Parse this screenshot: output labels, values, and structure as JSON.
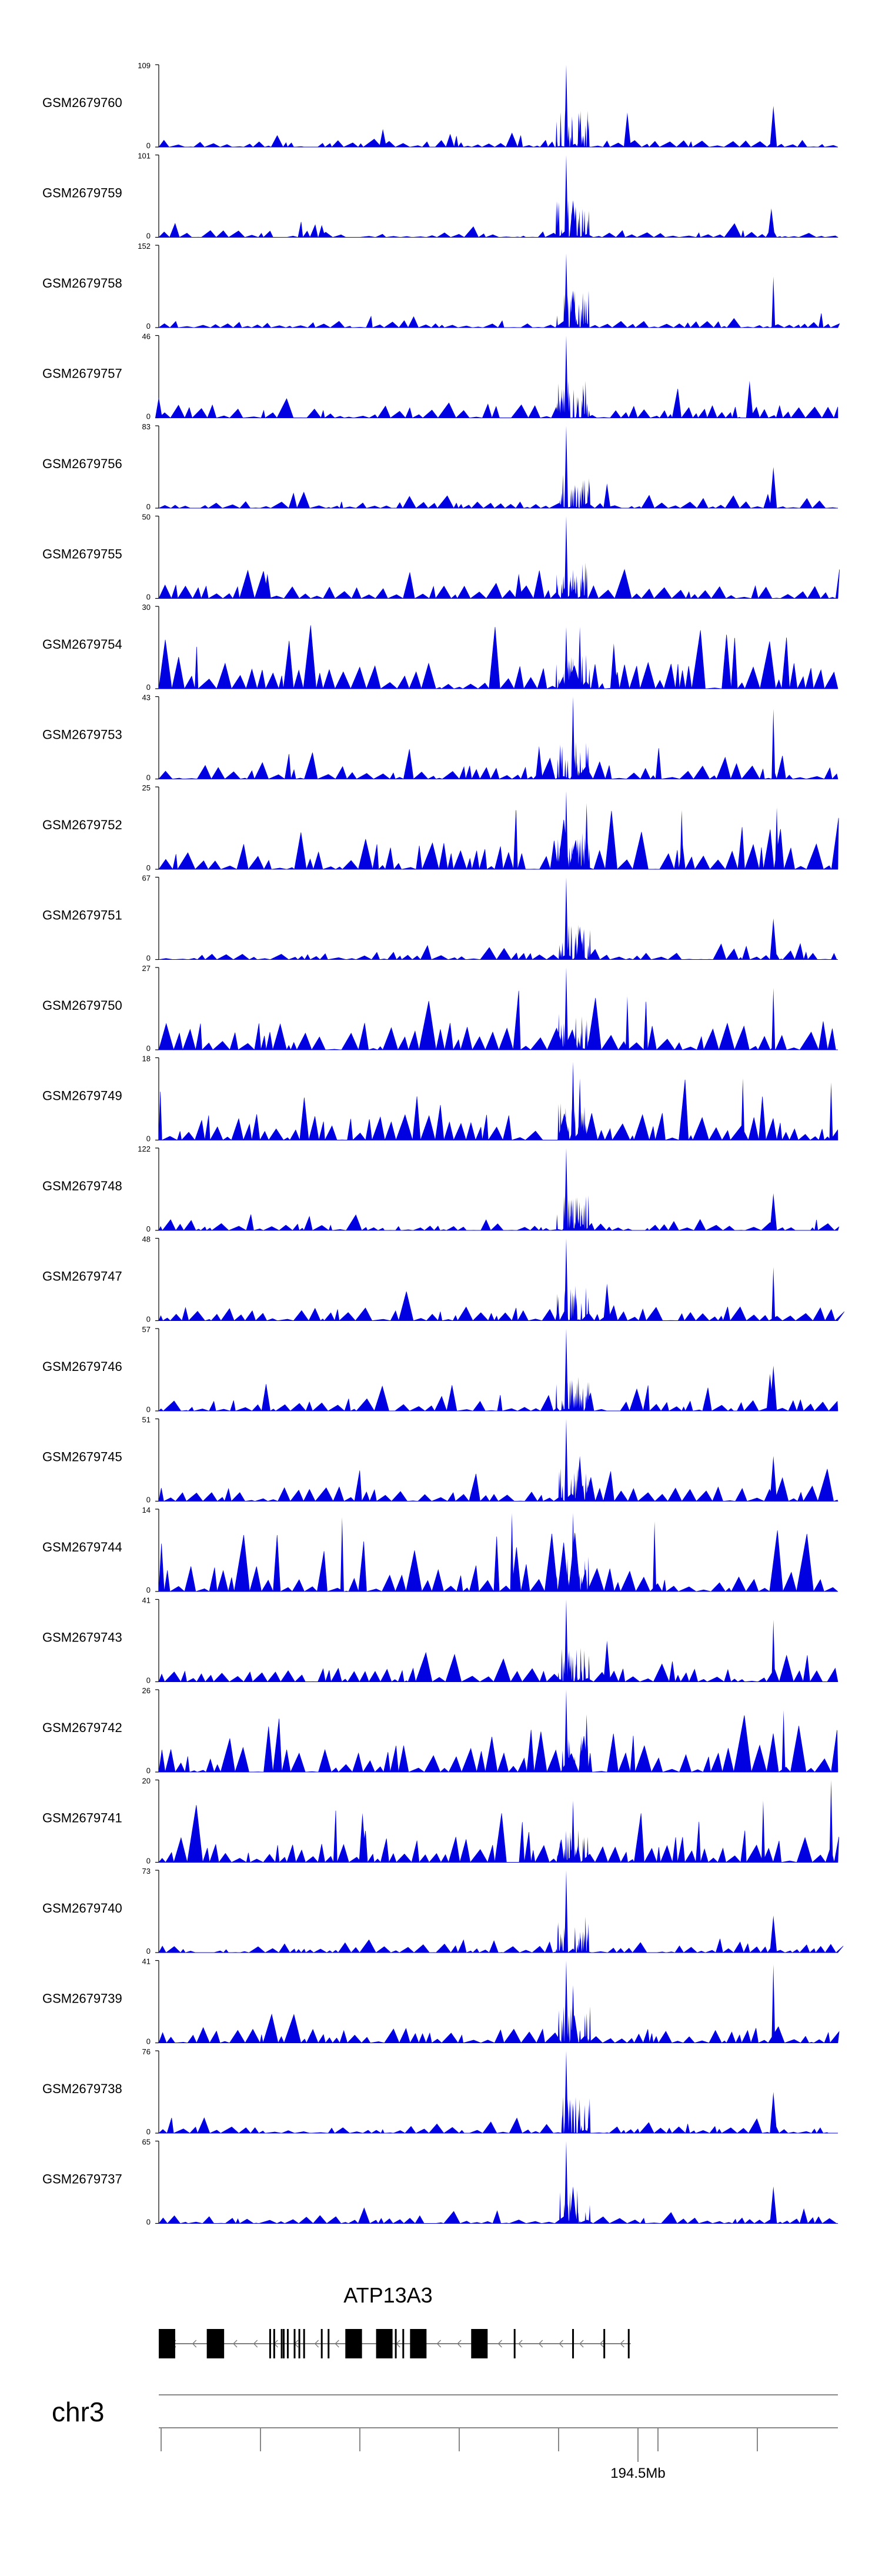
{
  "chart_data": {
    "type": "area",
    "title": "",
    "chromosome": "chr3",
    "series_color": "#0000e0",
    "axis": {
      "tick_label": "194.5Mb",
      "tick_value_mb": 194.5
    },
    "tracks": [
      {
        "name": "GSM2679760",
        "ymin": 0,
        "ymax": 109,
        "peaks": [
          {
            "pos": 0.6,
            "h": 1.0
          },
          {
            "pos": 0.905,
            "h": 0.5
          },
          {
            "pos": 0.69,
            "h": 0.42
          },
          {
            "pos": 0.33,
            "h": 0.22
          }
        ]
      },
      {
        "name": "GSM2679759",
        "ymin": 0,
        "ymax": 101,
        "peaks": [
          {
            "pos": 0.6,
            "h": 1.0
          },
          {
            "pos": 0.902,
            "h": 0.35
          },
          {
            "pos": 0.61,
            "h": 0.45
          },
          {
            "pos": 0.24,
            "h": 0.15
          }
        ]
      },
      {
        "name": "GSM2679758",
        "ymin": 0,
        "ymax": 152,
        "peaks": [
          {
            "pos": 0.6,
            "h": 0.9
          },
          {
            "pos": 0.905,
            "h": 0.62
          },
          {
            "pos": 0.61,
            "h": 0.45
          }
        ]
      },
      {
        "name": "GSM2679757",
        "ymin": 0,
        "ymax": 46,
        "peaks": [
          {
            "pos": 0.6,
            "h": 1.0
          },
          {
            "pos": 0.87,
            "h": 0.45
          },
          {
            "pos": 0.0,
            "h": 0.25
          }
        ]
      },
      {
        "name": "GSM2679756",
        "ymin": 0,
        "ymax": 83,
        "peaks": [
          {
            "pos": 0.6,
            "h": 1.0
          },
          {
            "pos": 0.905,
            "h": 0.5
          },
          {
            "pos": 0.66,
            "h": 0.3
          }
        ]
      },
      {
        "name": "GSM2679755",
        "ymin": 0,
        "ymax": 50,
        "peaks": [
          {
            "pos": 0.6,
            "h": 1.0
          },
          {
            "pos": 0.16,
            "h": 0.3
          },
          {
            "pos": 0.53,
            "h": 0.3
          }
        ]
      },
      {
        "name": "GSM2679754",
        "ymin": 0,
        "ymax": 30,
        "peaks": [
          {
            "pos": 0.6,
            "h": 0.75
          },
          {
            "pos": 0.62,
            "h": 0.75
          },
          {
            "pos": 0.67,
            "h": 0.55
          }
        ]
      },
      {
        "name": "GSM2679753",
        "ymin": 0,
        "ymax": 43,
        "peaks": [
          {
            "pos": 0.61,
            "h": 1.0
          },
          {
            "pos": 0.905,
            "h": 0.85
          },
          {
            "pos": 0.56,
            "h": 0.4
          }
        ]
      },
      {
        "name": "GSM2679752",
        "ymin": 0,
        "ymax": 25,
        "peaks": [
          {
            "pos": 0.6,
            "h": 0.95
          },
          {
            "pos": 0.63,
            "h": 0.8
          },
          {
            "pos": 0.91,
            "h": 0.75
          },
          {
            "pos": 0.77,
            "h": 0.72
          }
        ]
      },
      {
        "name": "GSM2679751",
        "ymin": 0,
        "ymax": 67,
        "peaks": [
          {
            "pos": 0.6,
            "h": 1.0
          },
          {
            "pos": 0.905,
            "h": 0.5
          },
          {
            "pos": 0.62,
            "h": 0.4
          }
        ]
      },
      {
        "name": "GSM2679750",
        "ymin": 0,
        "ymax": 27,
        "peaks": [
          {
            "pos": 0.6,
            "h": 1.0
          },
          {
            "pos": 0.69,
            "h": 0.65
          },
          {
            "pos": 0.905,
            "h": 0.75
          }
        ]
      },
      {
        "name": "GSM2679749",
        "ymin": 0,
        "ymax": 18,
        "peaks": [
          {
            "pos": 0.61,
            "h": 0.95
          },
          {
            "pos": 0.62,
            "h": 0.75
          },
          {
            "pos": 0.99,
            "h": 0.7
          },
          {
            "pos": 0.86,
            "h": 0.75
          }
        ]
      },
      {
        "name": "GSM2679748",
        "ymin": 0,
        "ymax": 122,
        "peaks": [
          {
            "pos": 0.6,
            "h": 1.0
          },
          {
            "pos": 0.905,
            "h": 0.45
          }
        ]
      },
      {
        "name": "GSM2679747",
        "ymin": 0,
        "ymax": 48,
        "peaks": [
          {
            "pos": 0.6,
            "h": 1.0
          },
          {
            "pos": 0.905,
            "h": 0.65
          },
          {
            "pos": 0.66,
            "h": 0.45
          }
        ]
      },
      {
        "name": "GSM2679746",
        "ymin": 0,
        "ymax": 57,
        "peaks": [
          {
            "pos": 0.6,
            "h": 1.0
          },
          {
            "pos": 0.905,
            "h": 0.55
          },
          {
            "pos": 0.9,
            "h": 0.45
          }
        ]
      },
      {
        "name": "GSM2679745",
        "ymin": 0,
        "ymax": 51,
        "peaks": [
          {
            "pos": 0.6,
            "h": 1.0
          },
          {
            "pos": 0.62,
            "h": 0.55
          },
          {
            "pos": 0.905,
            "h": 0.55
          }
        ]
      },
      {
        "name": "GSM2679744",
        "ymin": 0,
        "ymax": 14,
        "peaks": [
          {
            "pos": 0.61,
            "h": 0.95
          },
          {
            "pos": 0.27,
            "h": 0.9
          },
          {
            "pos": 0.52,
            "h": 0.95
          },
          {
            "pos": 0.73,
            "h": 0.85
          }
        ]
      },
      {
        "name": "GSM2679743",
        "ymin": 0,
        "ymax": 41,
        "peaks": [
          {
            "pos": 0.6,
            "h": 1.0
          },
          {
            "pos": 0.905,
            "h": 0.75
          },
          {
            "pos": 0.66,
            "h": 0.5
          }
        ]
      },
      {
        "name": "GSM2679742",
        "ymin": 0,
        "ymax": 26,
        "peaks": [
          {
            "pos": 0.6,
            "h": 1.0
          },
          {
            "pos": 0.63,
            "h": 0.7
          },
          {
            "pos": 0.92,
            "h": 0.75
          }
        ]
      },
      {
        "name": "GSM2679741",
        "ymin": 0,
        "ymax": 20,
        "peaks": [
          {
            "pos": 0.99,
            "h": 1.0
          },
          {
            "pos": 0.61,
            "h": 0.75
          },
          {
            "pos": 0.89,
            "h": 0.75
          },
          {
            "pos": 0.3,
            "h": 0.6
          }
        ]
      },
      {
        "name": "GSM2679740",
        "ymin": 0,
        "ymax": 73,
        "peaks": [
          {
            "pos": 0.6,
            "h": 1.0
          },
          {
            "pos": 0.905,
            "h": 0.45
          }
        ]
      },
      {
        "name": "GSM2679739",
        "ymin": 0,
        "ymax": 41,
        "peaks": [
          {
            "pos": 0.6,
            "h": 1.0
          },
          {
            "pos": 0.905,
            "h": 0.95
          },
          {
            "pos": 0.61,
            "h": 0.7
          }
        ]
      },
      {
        "name": "GSM2679738",
        "ymin": 0,
        "ymax": 76,
        "peaks": [
          {
            "pos": 0.6,
            "h": 1.0
          },
          {
            "pos": 0.905,
            "h": 0.5
          }
        ]
      },
      {
        "name": "GSM2679737",
        "ymin": 0,
        "ymax": 65,
        "peaks": [
          {
            "pos": 0.6,
            "h": 1.0
          },
          {
            "pos": 0.905,
            "h": 0.45
          },
          {
            "pos": 0.61,
            "h": 0.45
          }
        ]
      }
    ],
    "gene": {
      "name": "ATP13A3",
      "strand": "-",
      "exons": [
        0.003,
        0.072,
        0.164,
        0.17,
        0.181,
        0.184,
        0.19,
        0.2,
        0.207,
        0.214,
        0.24,
        0.25,
        0.276,
        0.294,
        0.338,
        0.349,
        0.36,
        0.376,
        0.384,
        0.391,
        0.473,
        0.524,
        0.61,
        0.656,
        0.692
      ],
      "wide_exons": [
        0.0,
        0.072,
        0.275,
        0.32,
        0.37,
        0.46
      ],
      "start": 0.0,
      "end": 0.695
    }
  }
}
